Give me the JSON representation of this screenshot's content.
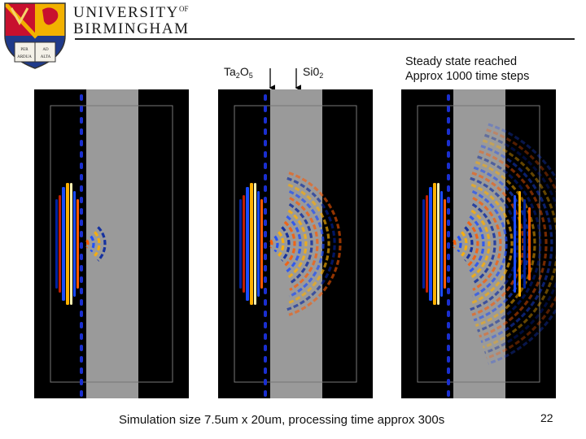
{
  "header": {
    "university_line1": "UNIVERSITY",
    "university_of": "OF",
    "university_line2": "BIRMINGHAM",
    "crest_motto": [
      "PER",
      "ARDUA",
      "AD",
      "ALTA"
    ]
  },
  "labels": {
    "ta_main": "Ta",
    "ta_sub1": "2",
    "ta_mid": "O",
    "ta_sub2": "5",
    "si_main": "Si0",
    "si_sub": "2",
    "steady_line1": "Steady state reached",
    "steady_line2": "Approx 1000 time steps"
  },
  "panels": [
    {
      "id": "early",
      "progress": 0.1
    },
    {
      "id": "mid",
      "progress": 0.55
    },
    {
      "id": "steady",
      "progress": 1.0
    }
  ],
  "caption": "Simulation size 7.5um x 20um, processing time approx 300s",
  "page_number": "22",
  "colors": {
    "crest_red": "#c8102e",
    "crest_gold": "#f2b100",
    "crest_blue": "#1f3a8a",
    "panel_bg": "#000000",
    "oxide_layer": "#9a9a9a"
  }
}
